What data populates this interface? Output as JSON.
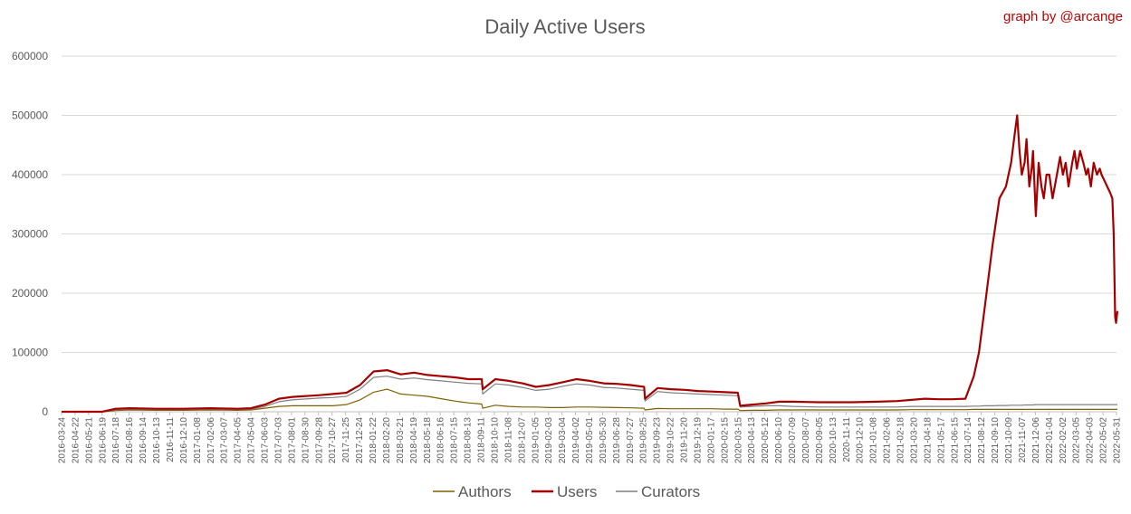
{
  "chart_data": {
    "type": "line",
    "title": "Daily Active Users",
    "credit": "graph by @arcange",
    "xlabel": "",
    "ylabel": "",
    "ylim": [
      0,
      600000
    ],
    "grid": true,
    "legend_position": "bottom",
    "y_ticks": [
      "0",
      "100000",
      "200000",
      "300000",
      "400000",
      "500000",
      "600000"
    ],
    "x_ticks": [
      "2016-03-24",
      "2016-04-22",
      "2016-05-21",
      "2016-06-19",
      "2016-07-18",
      "2016-08-16",
      "2016-09-14",
      "2016-10-13",
      "2016-11-11",
      "2016-12-10",
      "2017-01-08",
      "2017-02-06",
      "2017-03-07",
      "2017-04-05",
      "2017-05-04",
      "2017-06-02",
      "2017-07-01",
      "2017-07-30",
      "2017-08-28",
      "2017-09-26",
      "2017-10-25",
      "2017-11-23",
      "2017-12-22",
      "2018-01-20",
      "2018-02-18",
      "2018-03-19",
      "2018-04-17",
      "2018-05-16",
      "2018-06-14",
      "2018-07-13",
      "2018-08-11",
      "2018-09-09",
      "2018-10-08",
      "2018-11-06",
      "2018-12-05",
      "2019-01-03",
      "2019-02-01",
      "2019-03-02",
      "2019-03-31",
      "2019-04-29",
      "2019-05-28",
      "2019-06-26",
      "2019-07-25",
      "2019-08-23",
      "2019-09-21",
      "2019-10-20",
      "2019-11-18",
      "2019-12-17",
      "2020-01-15",
      "2020-02-13",
      "2020-03-13",
      "2020-04-11",
      "2020-05-10",
      "2020-06-08",
      "2020-07-07",
      "2020-08-05",
      "2020-09-03",
      "2020-10-02",
      "2020-10-31",
      "2020-11-29",
      "2020-12-28",
      "2021-01-26",
      "2021-02-24",
      "2021-03-25",
      "2021-04-23",
      "2021-05-22",
      "2021-06-20",
      "2021-07-19",
      "2021-08-17",
      "2021-09-15",
      "2021-10-14",
      "2021-11-12",
      "2021-12-11",
      "2022-01-09",
      "2022-02-07",
      "2022-03-08",
      "2022-04-06",
      "2022-05-05",
      "2022-06-03"
    ],
    "x_tick_labels": [
      "2016-03-24",
      "2016-04-22",
      "2016-05-21",
      "2016-06-19",
      "2016-07-18",
      "2016-08-16",
      "2016-09-14",
      "2016-10-13",
      "2016-11-11",
      "2016-12-10",
      "2017-01-08",
      "2017-02-06",
      "2017-03-07",
      "2017-04-05",
      "2017-05-04",
      "2017-06-03",
      "2017-07-03",
      "2017-08-01",
      "2017-08-30",
      "2017-09-28",
      "2017-10-27",
      "2017-11-25",
      "2017-12-24",
      "2018-01-22",
      "2018-02-20",
      "2018-03-21",
      "2018-04-19",
      "2018-05-18",
      "2018-06-16",
      "2018-07-15",
      "2018-08-13",
      "2018-09-11",
      "2018-10-10",
      "2018-11-08",
      "2018-12-07",
      "2019-01-05",
      "2019-02-03",
      "2019-03-04",
      "2019-04-02",
      "2019-05-01",
      "2019-05-30",
      "2019-06-28",
      "2019-07-27",
      "2019-08-25",
      "2019-09-23",
      "2019-10-22",
      "2019-11-20",
      "2019-12-19",
      "2020-01-17",
      "2020-02-15",
      "2020-03-15",
      "2020-04-13",
      "2020-05-12",
      "2020-06-10",
      "2020-07-09",
      "2020-08-07",
      "2020-09-05",
      "2020-10-13",
      "2020-11-11",
      "2020-12-10",
      "2021-01-08",
      "2021-02-06",
      "2021-02-18",
      "2021-03-20",
      "2021-04-18",
      "2021-05-17",
      "2021-06-15",
      "2021-07-14",
      "2021-08-12",
      "2021-09-10",
      "2021-10-09",
      "2021-11-07",
      "2021-12-06",
      "2022-01-04",
      "2022-02-02",
      "2022-03-05",
      "2022-04-03",
      "2022-05-02",
      "2022-05-31"
    ],
    "x": [
      "2016-03-24",
      "2016-06-19",
      "2016-07-18",
      "2016-08-16",
      "2016-10-13",
      "2016-12-10",
      "2017-02-06",
      "2017-04-05",
      "2017-05-04",
      "2017-06-03",
      "2017-07-03",
      "2017-08-01",
      "2017-09-28",
      "2017-10-27",
      "2017-11-25",
      "2017-12-24",
      "2018-01-22",
      "2018-02-20",
      "2018-03-21",
      "2018-04-19",
      "2018-05-18",
      "2018-06-16",
      "2018-07-15",
      "2018-08-13",
      "2018-09-11",
      "2018-09-13",
      "2018-10-10",
      "2018-11-08",
      "2018-12-07",
      "2019-01-05",
      "2019-02-03",
      "2019-03-04",
      "2019-04-02",
      "2019-05-01",
      "2019-05-30",
      "2019-06-28",
      "2019-07-27",
      "2019-08-25",
      "2019-08-27",
      "2019-09-23",
      "2019-10-22",
      "2019-11-20",
      "2019-12-19",
      "2020-01-17",
      "2020-02-15",
      "2020-03-13",
      "2020-03-18",
      "2020-04-13",
      "2020-05-12",
      "2020-06-10",
      "2020-07-09",
      "2020-09-05",
      "2020-11-11",
      "2021-01-08",
      "2021-02-18",
      "2021-03-20",
      "2021-04-18",
      "2021-05-17",
      "2021-06-15",
      "2021-07-14",
      "2021-08-01",
      "2021-08-12",
      "2021-08-25",
      "2021-09-10",
      "2021-09-25",
      "2021-10-09",
      "2021-10-20",
      "2021-10-28",
      "2021-11-02",
      "2021-11-07",
      "2021-11-12",
      "2021-11-18",
      "2021-11-22",
      "2021-11-28",
      "2021-12-03",
      "2021-12-06",
      "2021-12-12",
      "2021-12-18",
      "2021-12-24",
      "2021-12-29",
      "2022-01-04",
      "2022-01-10",
      "2022-01-17",
      "2022-01-24",
      "2022-02-02",
      "2022-02-08",
      "2022-02-14",
      "2022-02-20",
      "2022-02-28",
      "2022-03-05",
      "2022-03-10",
      "2022-03-17",
      "2022-03-24",
      "2022-03-30",
      "2022-04-03",
      "2022-04-09",
      "2022-04-15",
      "2022-04-22",
      "2022-04-28",
      "2022-05-02",
      "2022-05-08",
      "2022-05-14",
      "2022-05-20",
      "2022-05-25",
      "2022-05-28",
      "2022-05-31",
      "2022-06-02",
      "2022-06-05"
    ],
    "series": [
      {
        "name": "Authors",
        "color": "#7f6000",
        "values": [
          0,
          0,
          2000,
          3000,
          2500,
          2500,
          3000,
          2500,
          3000,
          6000,
          9000,
          10000,
          10000,
          10000,
          12000,
          20000,
          33000,
          38000,
          30000,
          28000,
          26000,
          22000,
          18000,
          15000,
          13000,
          6000,
          11000,
          9000,
          8000,
          8000,
          7000,
          7000,
          8000,
          8000,
          7500,
          7000,
          6500,
          6000,
          3000,
          5500,
          5000,
          5000,
          5000,
          5000,
          4500,
          4500,
          2000,
          2500,
          2500,
          3000,
          3000,
          3000,
          3000,
          3000,
          3000,
          3500,
          3500,
          3500,
          3500,
          3500,
          4000,
          4000,
          4000,
          4000,
          4000,
          4000,
          4000,
          4000,
          4000,
          4000,
          4000,
          4000,
          4000,
          4000,
          4000,
          4000,
          4000,
          4000,
          4000,
          4000,
          4000,
          4000,
          4000,
          4000,
          4000,
          4000,
          4000,
          4000,
          4000,
          4000,
          4000,
          4000,
          4000,
          4000,
          4000,
          4000,
          4000,
          4000,
          4000,
          4000,
          4000,
          4000,
          4000,
          4000,
          4000,
          4000,
          4000,
          4000
        ]
      },
      {
        "name": "Users",
        "color": "#a50000",
        "values": [
          0,
          0,
          5000,
          6000,
          5000,
          5000,
          6000,
          5000,
          6000,
          12000,
          22000,
          25000,
          28000,
          30000,
          32000,
          45000,
          68000,
          70000,
          63000,
          66000,
          62000,
          60000,
          58000,
          55000,
          55000,
          38000,
          55000,
          52000,
          48000,
          42000,
          45000,
          50000,
          55000,
          52000,
          48000,
          47000,
          45000,
          42000,
          22000,
          40000,
          38000,
          37000,
          35000,
          34000,
          33000,
          32000,
          10000,
          12000,
          14000,
          17000,
          17000,
          16000,
          16000,
          17000,
          18000,
          20000,
          22000,
          21000,
          21000,
          22000,
          60000,
          100000,
          180000,
          280000,
          360000,
          380000,
          420000,
          470000,
          500000,
          440000,
          400000,
          420000,
          460000,
          380000,
          410000,
          440000,
          330000,
          420000,
          380000,
          360000,
          400000,
          400000,
          360000,
          390000,
          430000,
          400000,
          420000,
          380000,
          420000,
          440000,
          410000,
          440000,
          420000,
          400000,
          410000,
          380000,
          420000,
          400000,
          410000,
          400000,
          390000,
          380000,
          370000,
          360000,
          300000,
          160000,
          150000,
          170000
        ]
      },
      {
        "name": "Curators",
        "color": "#7f7f7f",
        "values": [
          0,
          0,
          3500,
          4500,
          4000,
          4000,
          4500,
          4000,
          4500,
          9000,
          17000,
          20000,
          23000,
          24000,
          26000,
          38000,
          58000,
          60000,
          55000,
          57000,
          54000,
          52000,
          50000,
          48000,
          47000,
          30000,
          47000,
          45000,
          41000,
          36000,
          38000,
          43000,
          47000,
          45000,
          41000,
          40000,
          38000,
          36000,
          18000,
          34000,
          32000,
          31000,
          30000,
          29000,
          28000,
          27000,
          8000,
          9000,
          10000,
          10000,
          9000,
          8000,
          8000,
          8000,
          8000,
          9000,
          9000,
          9000,
          9000,
          9000,
          9500,
          9500,
          10000,
          10000,
          10500,
          10500,
          11000,
          11000,
          11000,
          11000,
          11000,
          11500,
          11500,
          11500,
          11500,
          11500,
          12000,
          12000,
          12000,
          12000,
          12000,
          12000,
          12000,
          12000,
          12000,
          12000,
          12000,
          12000,
          12000,
          12000,
          12000,
          12000,
          12000,
          12000,
          12000,
          12000,
          12000,
          12000,
          12000,
          12000,
          12000,
          12000,
          12000,
          12000,
          12000,
          12000,
          12000,
          12000
        ]
      }
    ]
  }
}
